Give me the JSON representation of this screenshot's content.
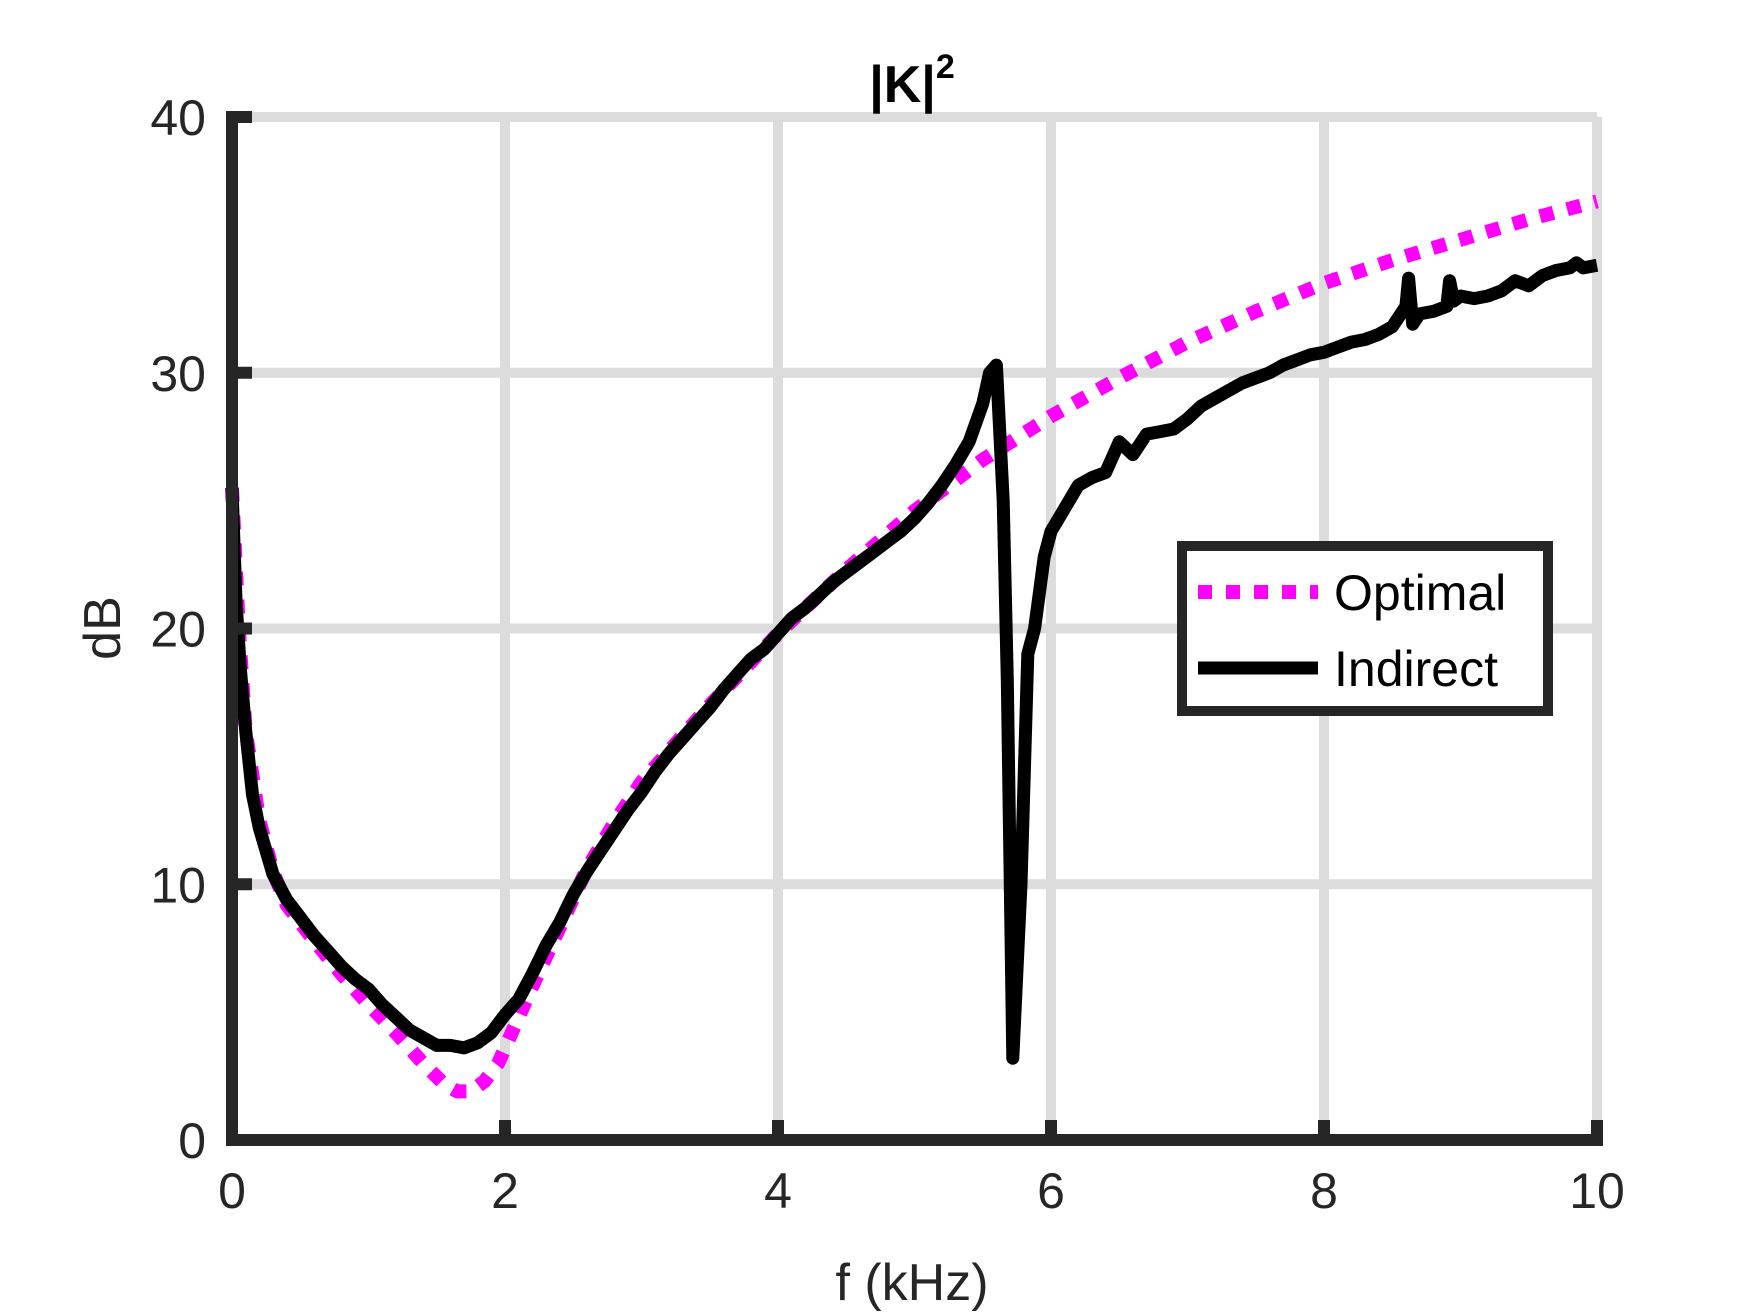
{
  "chart_data": {
    "type": "line",
    "title": "|K|",
    "title_superscript": "2",
    "xlabel": "f (kHz)",
    "ylabel": "dB",
    "xlim": [
      0,
      10
    ],
    "ylim": [
      0,
      40
    ],
    "xticks": [
      0,
      2,
      4,
      6,
      8,
      10
    ],
    "yticks": [
      0,
      10,
      20,
      30,
      40
    ],
    "xtick_labels": [
      "0",
      "2",
      "4",
      "6",
      "8",
      "10"
    ],
    "ytick_labels": [
      "0",
      "10",
      "20",
      "30",
      "40"
    ],
    "grid": true,
    "legend_position": "right",
    "colors": {
      "optimal": "#ff00ff",
      "indirect": "#000000",
      "axis": "#262626",
      "grid": "#dcdcdc"
    },
    "series": [
      {
        "name": "Optimal",
        "style": "dotted",
        "x": [
          0,
          0.05,
          0.1,
          0.2,
          0.3,
          0.4,
          0.5,
          0.6,
          0.8,
          1.0,
          1.2,
          1.4,
          1.55,
          1.65,
          1.75,
          1.85,
          1.95,
          2.05,
          2.2,
          2.4,
          2.6,
          2.8,
          3.0,
          3.5,
          4.0,
          4.5,
          5.0,
          5.5,
          6.0,
          6.5,
          7.0,
          7.5,
          8.0,
          8.5,
          9.0,
          9.5,
          10.0
        ],
        "y": [
          25.5,
          20.0,
          16.0,
          12.5,
          10.5,
          9.2,
          8.5,
          7.8,
          6.5,
          5.3,
          4.2,
          3.0,
          2.2,
          1.9,
          1.9,
          2.3,
          3.0,
          4.2,
          6.0,
          8.3,
          10.6,
          12.4,
          14.0,
          17.0,
          19.8,
          22.3,
          24.6,
          26.6,
          28.3,
          29.8,
          31.2,
          32.4,
          33.5,
          34.4,
          35.2,
          36.0,
          36.7
        ]
      },
      {
        "name": "Indirect",
        "style": "solid",
        "x": [
          0,
          0.03,
          0.06,
          0.1,
          0.15,
          0.2,
          0.3,
          0.4,
          0.5,
          0.6,
          0.7,
          0.8,
          0.9,
          1.0,
          1.1,
          1.2,
          1.3,
          1.4,
          1.5,
          1.6,
          1.7,
          1.8,
          1.9,
          2.0,
          2.1,
          2.2,
          2.3,
          2.4,
          2.5,
          2.6,
          2.7,
          2.8,
          2.9,
          3.0,
          3.1,
          3.2,
          3.3,
          3.4,
          3.5,
          3.6,
          3.7,
          3.8,
          3.9,
          4.0,
          4.1,
          4.2,
          4.3,
          4.4,
          4.5,
          4.6,
          4.7,
          4.8,
          4.9,
          5.0,
          5.1,
          5.2,
          5.3,
          5.4,
          5.5,
          5.55,
          5.6,
          5.65,
          5.68,
          5.72,
          5.78,
          5.83,
          5.88,
          5.95,
          6.0,
          6.1,
          6.2,
          6.3,
          6.4,
          6.5,
          6.6,
          6.7,
          6.8,
          6.9,
          7.0,
          7.1,
          7.2,
          7.3,
          7.4,
          7.5,
          7.6,
          7.7,
          7.8,
          7.9,
          8.0,
          8.1,
          8.2,
          8.3,
          8.4,
          8.5,
          8.6,
          8.62,
          8.65,
          8.7,
          8.8,
          8.9,
          8.92,
          8.95,
          9.0,
          9.1,
          9.2,
          9.3,
          9.4,
          9.5,
          9.6,
          9.7,
          9.8,
          9.85,
          9.9,
          10.0
        ],
        "y": [
          25.5,
          21.0,
          18.5,
          16.0,
          13.5,
          12.2,
          10.4,
          9.4,
          8.7,
          8.0,
          7.4,
          6.8,
          6.3,
          5.9,
          5.3,
          4.8,
          4.3,
          4.0,
          3.7,
          3.7,
          3.6,
          3.8,
          4.2,
          4.9,
          5.5,
          6.5,
          7.6,
          8.5,
          9.6,
          10.5,
          11.3,
          12.1,
          12.9,
          13.6,
          14.4,
          15.1,
          15.7,
          16.3,
          16.9,
          17.6,
          18.2,
          18.8,
          19.2,
          19.8,
          20.4,
          20.8,
          21.3,
          21.8,
          22.2,
          22.6,
          23.0,
          23.4,
          23.8,
          24.3,
          24.9,
          25.6,
          26.4,
          27.3,
          28.8,
          30.0,
          30.3,
          25.0,
          18.0,
          3.2,
          10.0,
          19.0,
          20.0,
          22.8,
          23.8,
          24.7,
          25.6,
          25.9,
          26.1,
          27.3,
          26.8,
          27.6,
          27.7,
          27.8,
          28.2,
          28.7,
          29.0,
          29.3,
          29.6,
          29.8,
          30.0,
          30.3,
          30.5,
          30.7,
          30.8,
          31.0,
          31.2,
          31.3,
          31.5,
          31.8,
          32.6,
          33.7,
          31.9,
          32.3,
          32.4,
          32.6,
          33.6,
          32.8,
          33.0,
          32.9,
          33.0,
          33.2,
          33.6,
          33.4,
          33.8,
          34.0,
          34.1,
          34.3,
          34.1,
          34.2
        ]
      }
    ]
  }
}
